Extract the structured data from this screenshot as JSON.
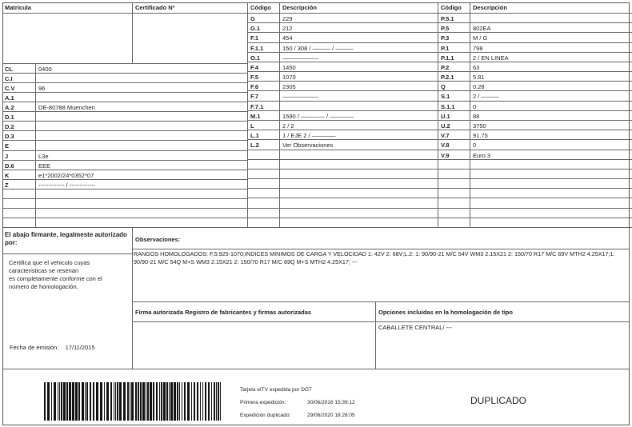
{
  "left": {
    "matricula_label": "Matricula",
    "certificado_label": "Certificado Nº",
    "rows": [
      {
        "code": "CL",
        "value": "0400"
      },
      {
        "code": "C.I",
        "value": ""
      },
      {
        "code": "C.V",
        "value": "96"
      },
      {
        "code": "A.1",
        "value": ""
      },
      {
        "code": "A.2",
        "value": "DE-80788 Muenchen"
      },
      {
        "code": "D.1",
        "value": ""
      },
      {
        "code": "D.2",
        "value": ""
      },
      {
        "code": "D.3",
        "value": ""
      },
      {
        "code": "E",
        "value": ""
      },
      {
        "code": "J",
        "value": "L3e"
      },
      {
        "code": "D.6",
        "value": "EEE"
      },
      {
        "code": "K",
        "value": "e1*2002/24*0352*07"
      },
      {
        "code": "Z",
        "value": "------------- / -------------"
      }
    ]
  },
  "middle": {
    "code_header": "Código",
    "desc_header": "Descripción",
    "rows": [
      {
        "code": "G",
        "value": "229"
      },
      {
        "code": "G.1",
        "value": "212"
      },
      {
        "code": "F.1",
        "value": "454"
      },
      {
        "code": "F.1.1",
        "value": "150 / 308 / ——— / ———"
      },
      {
        "code": "O.1",
        "value": "——————"
      },
      {
        "code": "F.4",
        "value": "1450"
      },
      {
        "code": "F.5",
        "value": "1070"
      },
      {
        "code": "F.6",
        "value": "2305"
      },
      {
        "code": "F.7",
        "value": "——————"
      },
      {
        "code": "F.7.1",
        "value": ""
      },
      {
        "code": "M.1",
        "value": "1590 / ———— / ————"
      },
      {
        "code": "L",
        "value": "2 / 2"
      },
      {
        "code": "L.1",
        "value": "1 / EJE 2 / ————"
      },
      {
        "code": "L.2",
        "value": "Ver Observaciones"
      }
    ]
  },
  "right": {
    "code_header": "Código",
    "desc_header": "Descripción",
    "rows": [
      {
        "code": "P.5.1",
        "value": ""
      },
      {
        "code": "P.5",
        "value": "802EA"
      },
      {
        "code": "P.3",
        "value": "M / G"
      },
      {
        "code": "P.1",
        "value": "798"
      },
      {
        "code": "P.1.1",
        "value": "2 / EN LINEA"
      },
      {
        "code": "P.2",
        "value": "63"
      },
      {
        "code": "P.2.1",
        "value": "5.81"
      },
      {
        "code": "Q",
        "value": "0.28"
      },
      {
        "code": "S.1",
        "value": "2 / ———"
      },
      {
        "code": "S.1.1",
        "value": "0"
      },
      {
        "code": "U.1",
        "value": "88"
      },
      {
        "code": "U.2",
        "value": "3750"
      },
      {
        "code": "V.7",
        "value": "91.75"
      },
      {
        "code": "V.8",
        "value": "0"
      },
      {
        "code": "V.9",
        "value": "Euro 3"
      }
    ]
  },
  "bottom": {
    "signer_header": "El abajo firmante, legalmeste autorizado por:",
    "certifies_lines": [
      "Certifica que el vehiculo cuyas",
      "caracteristicas se resenan",
      "es completamente conformе con el",
      "número de homologación."
    ],
    "issue_label": "Fecha de emisión:",
    "issue_date": "17/11/2015",
    "obs_header": "Observaciones:",
    "obs_text": "RANGOS HOMOLOGADOS: F.5:925-1070;INDICES MINIMOS DE CARGA Y VELOCIDAD 1: 42V 2: 68V;L.2: 1: 90/90-21 M/C 54V WM3 2.15X21 2: 150/70 R17 M/C 69V MTH2 4.25X17;1: 90/90-21 M/C 54Q M+S WM3 2.15X21 2: 150/70 R17 M/C 69Q M+S MTH2 4.25X17; ---",
    "firma_header": "Firma autorizada Registro de fabricantes y firmas autorizadas",
    "opciones_header": "Opciones incluidas en la homologación de tipo",
    "opciones_value": "CABALLETE CENTRAL/ ---"
  },
  "footer": {
    "issued_by": "Tarjeta eITV expedida por DGT",
    "first_label": "Primera expedición:",
    "first_value": "30/06/2016 15:39:12",
    "dup_label": "Expedición duplicado:",
    "dup_value": "29/06/2020 18:28:05",
    "stamp": "DUPLICADO"
  }
}
